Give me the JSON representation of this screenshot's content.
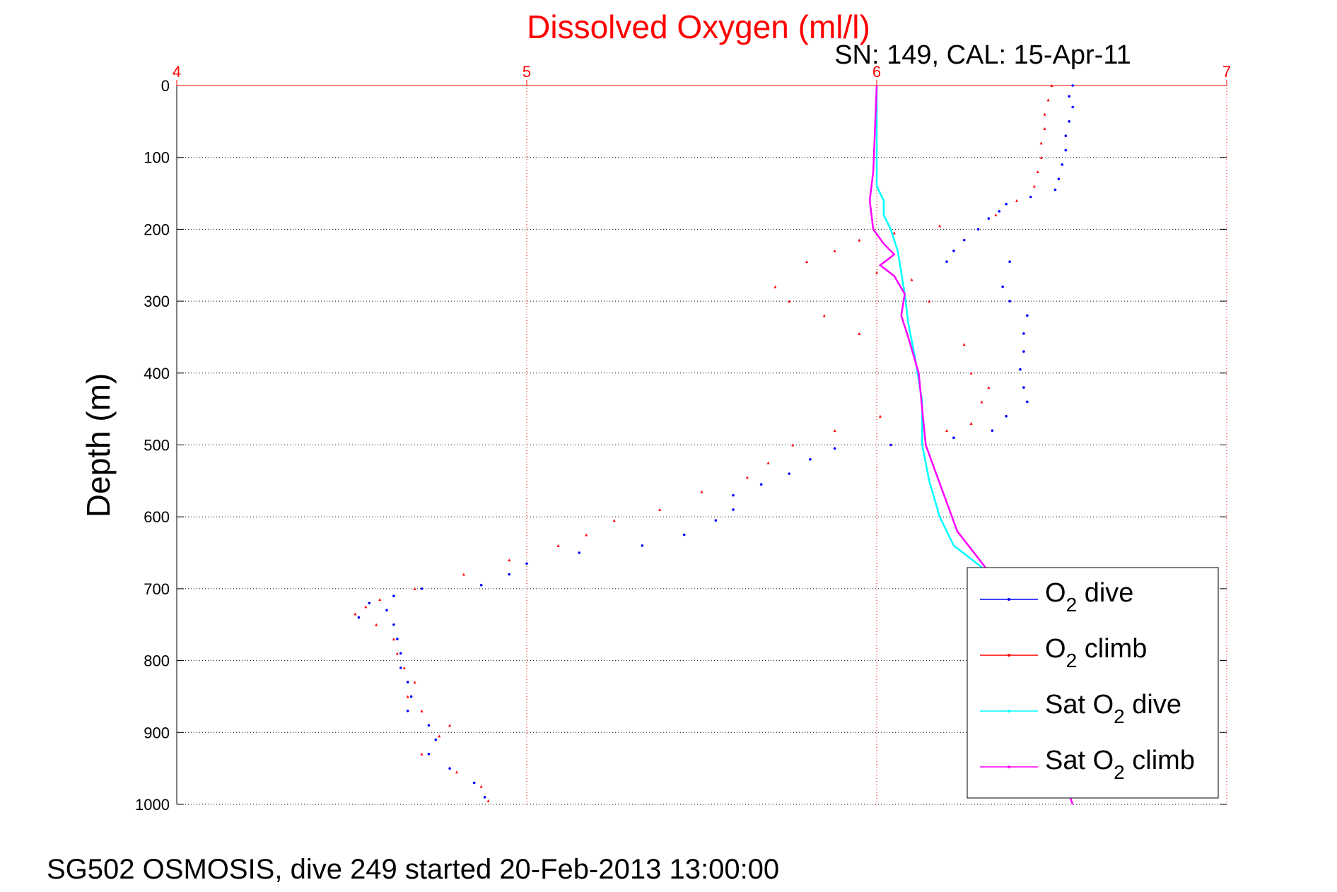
{
  "chart_data": {
    "type": "scatter",
    "title": "Dissolved Oxygen (ml/l)",
    "subtitle": "SN: 149, CAL: 15-Apr-11",
    "ylabel": "Depth (m)",
    "xlabel": "",
    "xlim": [
      4,
      7
    ],
    "ylim": [
      0,
      1000
    ],
    "y_reversed": true,
    "x_ticks": [
      "4",
      "5",
      "6",
      "7"
    ],
    "y_ticks": [
      "0",
      "100",
      "200",
      "300",
      "400",
      "500",
      "600",
      "700",
      "800",
      "900",
      "1000"
    ],
    "grid": true,
    "legend_position": "bottom-right",
    "colors": {
      "title": "#ff0000",
      "x_axis": "#ff0000",
      "o2_dive": "#0000ff",
      "o2_climb": "#ff0000",
      "sat_dive": "#00ffff",
      "sat_climb": "#ff00ff"
    },
    "series": [
      {
        "name": "O2 dive",
        "legend_main": "O",
        "legend_sub": "2",
        "legend_rest": " dive",
        "color": "#0000ff",
        "marker": "dot",
        "points": [
          [
            6.56,
            0
          ],
          [
            6.55,
            15
          ],
          [
            6.56,
            30
          ],
          [
            6.55,
            50
          ],
          [
            6.54,
            70
          ],
          [
            6.54,
            90
          ],
          [
            6.53,
            110
          ],
          [
            6.52,
            130
          ],
          [
            6.51,
            145
          ],
          [
            6.44,
            155
          ],
          [
            6.37,
            165
          ],
          [
            6.35,
            175
          ],
          [
            6.32,
            185
          ],
          [
            6.29,
            200
          ],
          [
            6.25,
            215
          ],
          [
            6.22,
            230
          ],
          [
            6.2,
            245
          ],
          [
            6.38,
            245
          ],
          [
            6.36,
            280
          ],
          [
            6.38,
            300
          ],
          [
            6.43,
            320
          ],
          [
            6.42,
            345
          ],
          [
            6.42,
            370
          ],
          [
            6.41,
            395
          ],
          [
            6.42,
            420
          ],
          [
            6.43,
            440
          ],
          [
            6.37,
            460
          ],
          [
            6.33,
            480
          ],
          [
            6.22,
            490
          ],
          [
            6.04,
            500
          ],
          [
            5.88,
            505
          ],
          [
            5.81,
            520
          ],
          [
            5.75,
            540
          ],
          [
            5.67,
            555
          ],
          [
            5.59,
            570
          ],
          [
            5.59,
            590
          ],
          [
            5.54,
            605
          ],
          [
            5.45,
            625
          ],
          [
            5.33,
            640
          ],
          [
            5.15,
            650
          ],
          [
            5.0,
            665
          ],
          [
            4.95,
            680
          ],
          [
            4.87,
            695
          ],
          [
            4.7,
            700
          ],
          [
            4.62,
            710
          ],
          [
            4.55,
            720
          ],
          [
            4.6,
            730
          ],
          [
            4.52,
            740
          ],
          [
            4.62,
            750
          ],
          [
            4.63,
            770
          ],
          [
            4.64,
            790
          ],
          [
            4.64,
            810
          ],
          [
            4.66,
            830
          ],
          [
            4.67,
            850
          ],
          [
            4.66,
            870
          ],
          [
            4.72,
            890
          ],
          [
            4.74,
            910
          ],
          [
            4.72,
            930
          ],
          [
            4.78,
            950
          ],
          [
            4.85,
            970
          ],
          [
            4.88,
            990
          ]
        ]
      },
      {
        "name": "O2 climb",
        "legend_main": "O",
        "legend_sub": "2",
        "legend_rest": " climb",
        "color": "#ff0000",
        "marker": "triangle",
        "points": [
          [
            6.5,
            0
          ],
          [
            6.49,
            20
          ],
          [
            6.48,
            40
          ],
          [
            6.48,
            60
          ],
          [
            6.47,
            80
          ],
          [
            6.47,
            100
          ],
          [
            6.46,
            120
          ],
          [
            6.45,
            140
          ],
          [
            6.4,
            160
          ],
          [
            6.34,
            180
          ],
          [
            6.18,
            195
          ],
          [
            6.05,
            205
          ],
          [
            5.95,
            215
          ],
          [
            5.88,
            230
          ],
          [
            5.8,
            245
          ],
          [
            5.71,
            280
          ],
          [
            5.75,
            300
          ],
          [
            5.85,
            320
          ],
          [
            5.95,
            345
          ],
          [
            6.0,
            260
          ],
          [
            6.1,
            270
          ],
          [
            6.15,
            300
          ],
          [
            6.25,
            360
          ],
          [
            6.27,
            400
          ],
          [
            6.32,
            420
          ],
          [
            6.3,
            440
          ],
          [
            6.27,
            470
          ],
          [
            6.2,
            480
          ],
          [
            6.01,
            460
          ],
          [
            5.88,
            480
          ],
          [
            5.76,
            500
          ],
          [
            5.69,
            525
          ],
          [
            5.63,
            545
          ],
          [
            5.5,
            565
          ],
          [
            5.38,
            590
          ],
          [
            5.25,
            605
          ],
          [
            5.17,
            625
          ],
          [
            5.09,
            640
          ],
          [
            4.95,
            660
          ],
          [
            4.82,
            680
          ],
          [
            4.68,
            700
          ],
          [
            4.58,
            715
          ],
          [
            4.54,
            725
          ],
          [
            4.51,
            735
          ],
          [
            4.57,
            750
          ],
          [
            4.62,
            770
          ],
          [
            4.63,
            790
          ],
          [
            4.65,
            810
          ],
          [
            4.68,
            830
          ],
          [
            4.66,
            850
          ],
          [
            4.7,
            870
          ],
          [
            4.78,
            890
          ],
          [
            4.75,
            905
          ],
          [
            4.7,
            930
          ],
          [
            4.8,
            955
          ],
          [
            4.87,
            975
          ],
          [
            4.89,
            995
          ]
        ]
      },
      {
        "name": "Sat O2 dive",
        "legend_main": "Sat O",
        "legend_sub": "2",
        "legend_rest": " dive",
        "color": "#00ffff",
        "marker": "line",
        "points": [
          [
            6.0,
            0
          ],
          [
            6.0,
            100
          ],
          [
            6.0,
            140
          ],
          [
            6.02,
            160
          ],
          [
            6.02,
            180
          ],
          [
            6.04,
            200
          ],
          [
            6.06,
            230
          ],
          [
            6.07,
            260
          ],
          [
            6.08,
            290
          ],
          [
            6.09,
            330
          ],
          [
            6.11,
            380
          ],
          [
            6.13,
            440
          ],
          [
            6.13,
            500
          ],
          [
            6.15,
            550
          ],
          [
            6.18,
            600
          ],
          [
            6.22,
            640
          ],
          [
            6.3,
            670
          ]
        ]
      },
      {
        "name": "Sat O2 climb",
        "legend_main": "Sat O",
        "legend_sub": "2",
        "legend_rest": " climb",
        "color": "#ff00ff",
        "marker": "line",
        "points": [
          [
            6.0,
            0
          ],
          [
            5.99,
            120
          ],
          [
            5.98,
            160
          ],
          [
            5.99,
            200
          ],
          [
            6.02,
            220
          ],
          [
            6.05,
            235
          ],
          [
            6.01,
            250
          ],
          [
            6.05,
            265
          ],
          [
            6.08,
            290
          ],
          [
            6.07,
            320
          ],
          [
            6.09,
            350
          ],
          [
            6.12,
            400
          ],
          [
            6.13,
            450
          ],
          [
            6.14,
            500
          ],
          [
            6.17,
            540
          ],
          [
            6.2,
            580
          ],
          [
            6.23,
            620
          ],
          [
            6.31,
            670
          ],
          [
            6.56,
            1000
          ]
        ]
      }
    ]
  },
  "footer": "SG502 OSMOSIS, dive 249 started 20-Feb-2013 13:00:00"
}
